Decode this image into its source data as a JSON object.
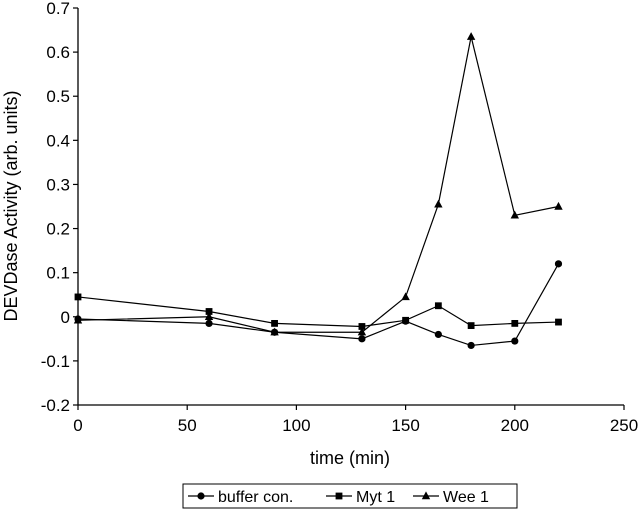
{
  "chart_data": {
    "type": "line",
    "xlabel": "time (min)",
    "ylabel": "DEVDase Activity (arb. units)",
    "xlim": [
      0,
      250
    ],
    "ylim": [
      -0.2,
      0.7
    ],
    "xticks": [
      0,
      50,
      100,
      150,
      200,
      250
    ],
    "yticks": [
      -0.2,
      -0.1,
      0,
      0.1,
      0.2,
      0.3,
      0.4,
      0.5,
      0.6,
      0.7
    ],
    "xtick_labels": [
      "0",
      "50",
      "100",
      "150",
      "200",
      "250"
    ],
    "ytick_labels": [
      "-0.2",
      "-0.1",
      "0",
      "0.1",
      "0.2",
      "0.3",
      "0.4",
      "0.5",
      "0.6",
      "0.7"
    ],
    "grid": false,
    "legend_position": "bottom",
    "series": [
      {
        "name": "buffer con.",
        "marker": "circle",
        "x": [
          0,
          60,
          90,
          130,
          150,
          165,
          180,
          200,
          220
        ],
        "y": [
          -0.005,
          -0.015,
          -0.035,
          -0.05,
          -0.01,
          -0.04,
          -0.065,
          -0.055,
          0.12
        ]
      },
      {
        "name": "Myt 1",
        "marker": "square",
        "x": [
          0,
          60,
          90,
          130,
          150,
          165,
          180,
          200,
          220
        ],
        "y": [
          0.045,
          0.012,
          -0.015,
          -0.022,
          -0.008,
          0.025,
          -0.02,
          -0.015,
          -0.012
        ]
      },
      {
        "name": "Wee 1",
        "marker": "triangle",
        "x": [
          0,
          60,
          90,
          130,
          150,
          165,
          180,
          200,
          220
        ],
        "y": [
          -0.008,
          0.0,
          -0.035,
          -0.035,
          0.045,
          0.255,
          0.635,
          0.23,
          0.25
        ]
      }
    ]
  }
}
